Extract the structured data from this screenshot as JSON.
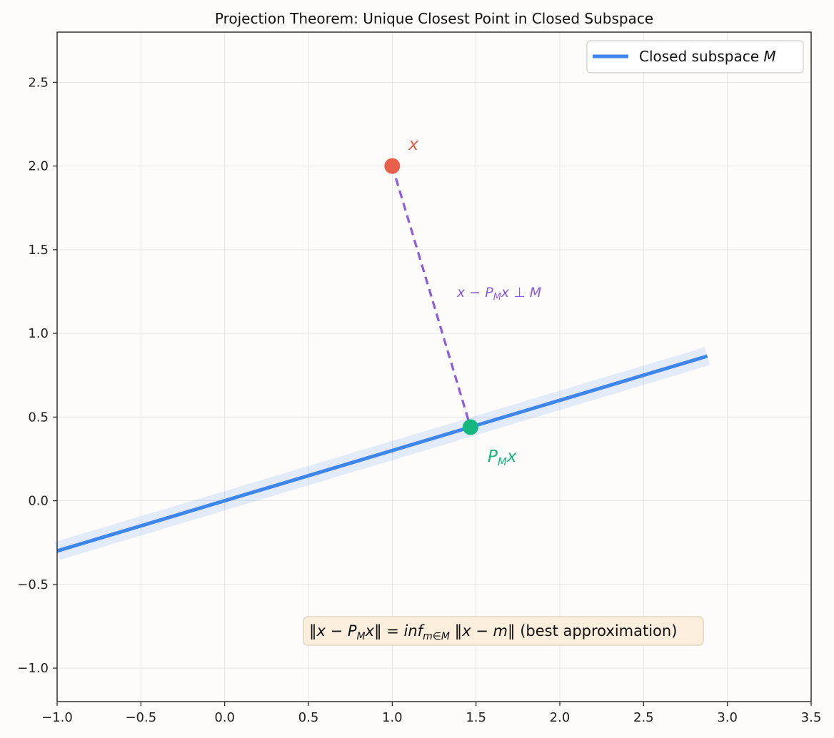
{
  "chart_data": {
    "type": "line",
    "title": "Projection Theorem: Unique Closest Point in Closed Subspace",
    "xlabel": "",
    "ylabel": "",
    "xlim": [
      -1.0,
      3.5
    ],
    "ylim": [
      -1.2,
      2.8
    ],
    "grid": true,
    "legend_placement": "top-right",
    "x_ticks": [
      -1.0,
      -0.5,
      0.0,
      0.5,
      1.0,
      1.5,
      2.0,
      2.5,
      3.0,
      3.5
    ],
    "x_tick_labels": [
      "−1.0",
      "−0.5",
      "0.0",
      "0.5",
      "1.0",
      "1.5",
      "2.0",
      "2.5",
      "3.0",
      "3.5"
    ],
    "y_ticks": [
      -1.0,
      -0.5,
      0.0,
      0.5,
      1.0,
      1.5,
      2.0,
      2.5
    ],
    "y_tick_labels": [
      "−1.0",
      "−0.5",
      "0.0",
      "0.5",
      "1.0",
      "1.5",
      "2.0",
      "2.5"
    ],
    "series": [
      {
        "name": "Closed subspace M",
        "legend_label": "Closed subspace",
        "legend_math": "M",
        "x": [
          -1.0,
          2.88
        ],
        "y": [
          -0.3,
          0.864
        ],
        "color": "#3f86ea"
      }
    ],
    "points": [
      {
        "id": "x",
        "label": "x",
        "x": 1.0,
        "y": 2.0,
        "color": "#e8604a"
      },
      {
        "id": "pmx",
        "label": "P",
        "label_sub": "M",
        "label_tail": "x",
        "x": 1.467,
        "y": 0.44,
        "color": "#16b77e"
      }
    ],
    "projection_segment": {
      "from": [
        1.0,
        2.0
      ],
      "to": [
        1.467,
        0.44
      ],
      "color": "#8a5ce0",
      "label": "x − P",
      "label_sub": "M",
      "label_tail": "x ⊥ M"
    },
    "annotation": {
      "text_norm": "‖x − P",
      "text_norm_sub": "M",
      "text_norm_tail": "x‖ = inf",
      "text_inf_sub": "m∈M",
      "text_rest": "‖x − m‖",
      "text_plain": " (best approximation)"
    }
  }
}
